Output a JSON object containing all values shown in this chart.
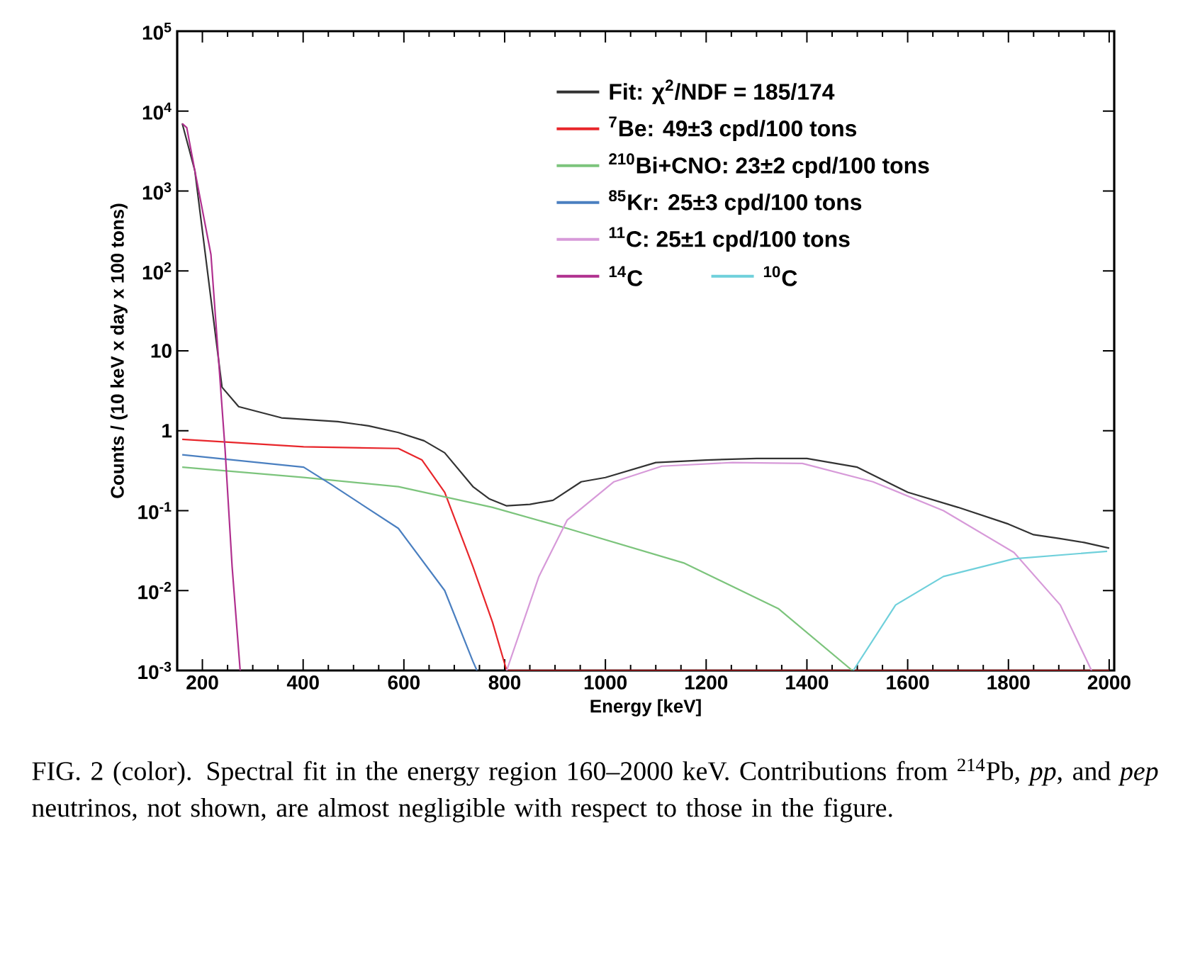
{
  "chart_data": {
    "type": "line",
    "xlabel": "Energy [keV]",
    "ylabel": "Counts / (10 keV x day x 100 tons)",
    "log": "y",
    "xlim": [
      150,
      2010
    ],
    "ylim": [
      0.001,
      100000
    ],
    "xticks": [
      200,
      400,
      600,
      800,
      1000,
      1200,
      1400,
      1600,
      1800,
      2000
    ],
    "yticks": [
      {
        "value": 0.001,
        "label": "10$^{-3}$"
      },
      {
        "value": 0.01,
        "label": "10$^{-2}$"
      },
      {
        "value": 0.1,
        "label": "10$^{-1}$"
      },
      1,
      10,
      {
        "value": 100,
        "label": "10$^{2}$"
      },
      {
        "value": 1000,
        "label": "10$^{3}$"
      },
      {
        "value": 10000,
        "label": "10$^{4}$"
      },
      {
        "value": 100000,
        "label": "10$^{5}$"
      }
    ],
    "legend": "top right",
    "series": [
      {
        "name": "Fit:  χ$^{2}$/NDF = 185/174",
        "color": "#333333",
        "x": [
          160,
          185,
          217,
          239,
          272,
          357,
          469,
          530,
          589,
          640,
          681,
          737,
          770,
          804,
          850,
          896,
          952,
          1000,
          1100,
          1200,
          1300,
          1400,
          1500,
          1600,
          1700,
          1800,
          1850,
          1900,
          1950,
          2000
        ],
        "values": [
          7000,
          1800,
          null,
          3.5,
          2.0,
          1.45,
          1.3,
          1.15,
          0.95,
          0.75,
          0.53,
          0.2,
          0.14,
          0.115,
          0.12,
          0.135,
          0.23,
          0.26,
          0.4,
          0.43,
          0.45,
          0.45,
          0.35,
          0.17,
          0.11,
          0.068,
          0.05,
          0.045,
          0.04,
          0.034
        ]
      },
      {
        "name": "$^{7}$Be: 49±3 cpd/100 tons",
        "color": "#e8262b",
        "x": [
          160,
          401,
          589,
          636,
          681,
          737,
          776,
          804,
          1000,
          1500,
          2000
        ],
        "values": [
          0.78,
          0.63,
          0.6,
          0.43,
          0.17,
          0.02,
          0.004,
          0.001,
          0.001,
          0.001,
          0.001
        ]
      },
      {
        "name": "$^{210}$Bi+CNO: 23±2 cpd/100 tons",
        "color": "#7cc47c",
        "x": [
          160,
          401,
          589,
          776,
          924,
          1157,
          1344,
          1490
        ],
        "values": [
          0.35,
          0.26,
          0.2,
          0.11,
          0.06,
          0.022,
          0.0059,
          0.001
        ]
      },
      {
        "name": "$^{85}$Kr: 25±3 cpd/100 tons",
        "color": "#4a7fc0",
        "x": [
          160,
          401,
          457,
          589,
          681,
          737,
          745
        ],
        "values": [
          0.5,
          0.35,
          0.21,
          0.06,
          0.01,
          0.0013,
          0.001
        ]
      },
      {
        "name": "$^{11}$C: 25±1 cpd/100 tons",
        "color": "#d79ad9",
        "x": [
          804,
          868,
          924,
          1017,
          1112,
          1252,
          1391,
          1531,
          1671,
          1811,
          1903,
          1965
        ],
        "values": [
          0.001,
          0.015,
          0.076,
          0.23,
          0.36,
          0.4,
          0.39,
          0.23,
          0.1,
          0.03,
          0.0066,
          0.001
        ]
      },
      {
        "name": "$^{14}$C",
        "color": "#b0308f",
        "x": [
          160,
          169,
          185,
          217,
          245,
          259,
          275
        ],
        "values": [
          7000,
          6200,
          1800,
          160,
          0.59,
          0.02,
          0.001
        ]
      },
      {
        "name": "$^{10}$C",
        "color": "#6fd0db",
        "x": [
          1492,
          1576,
          1671,
          1811,
          1996
        ],
        "values": [
          0.001,
          0.0066,
          0.015,
          0.025,
          0.031
        ]
      }
    ],
    "annotations": [
      "FIG. 2 (color).   Spectral fit in the energy region 160–2000 keV. Contributions from $^{214}$Pb, *pp*, and *pep* neutrinos, not shown, are almost negligible with respect to those in the figure."
    ]
  }
}
